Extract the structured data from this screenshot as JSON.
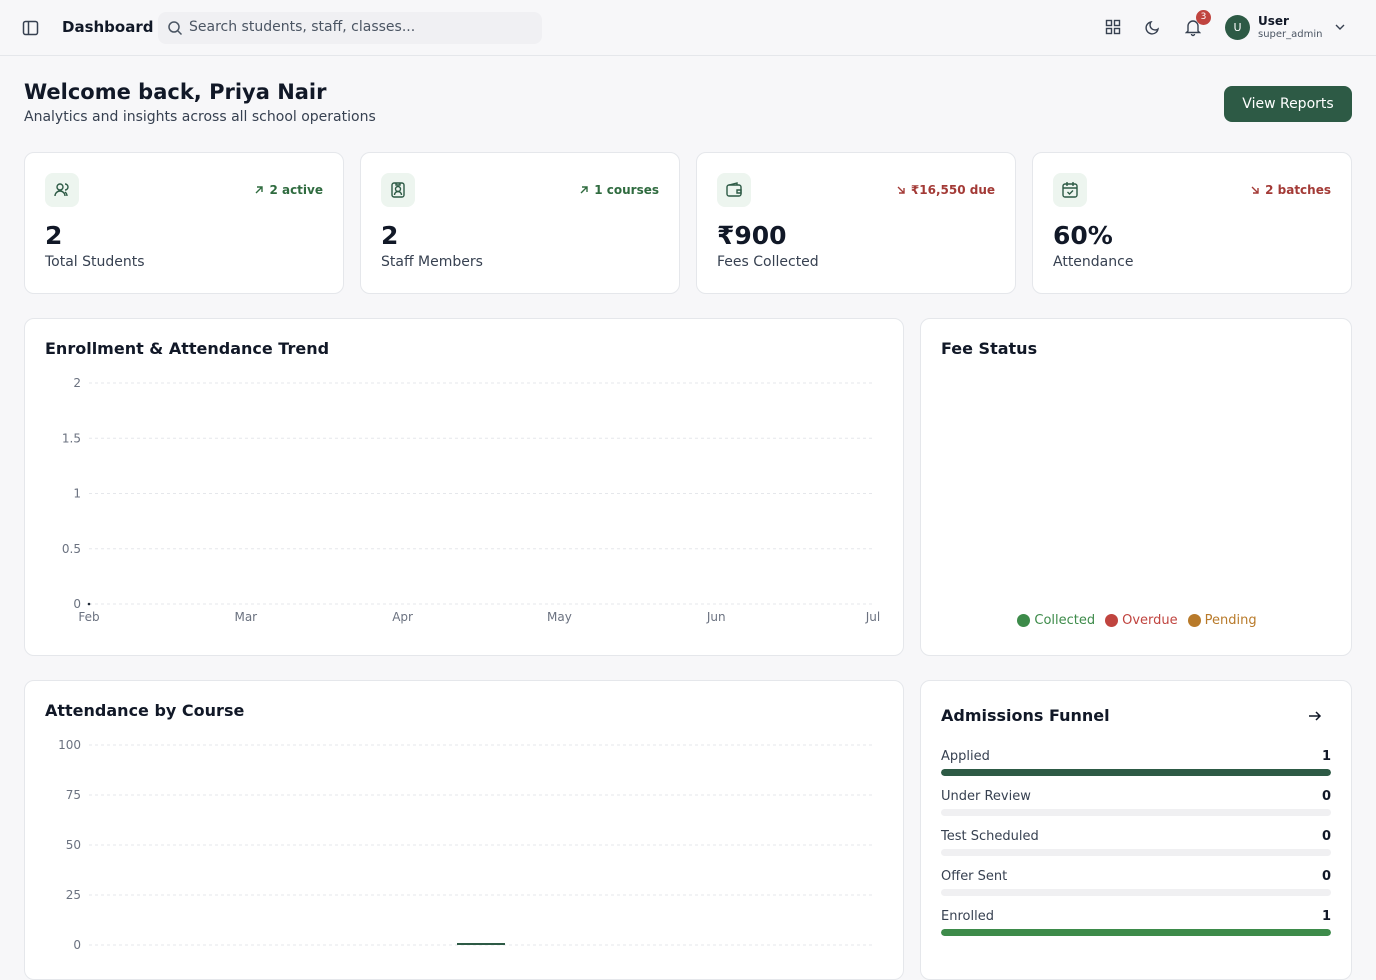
{
  "header": {
    "title": "Dashboard",
    "search_placeholder": "Search students, staff, classes...",
    "notification_count": "3",
    "user": {
      "avatar": "U",
      "name": "User",
      "role": "super_admin"
    }
  },
  "welcome": {
    "title": "Welcome back, Priya Nair",
    "subtitle": "Analytics and insights across all school operations",
    "button": "View Reports"
  },
  "stats": [
    {
      "value": "2",
      "label": "Total Students",
      "trend": "2 active",
      "direction": "up"
    },
    {
      "value": "2",
      "label": "Staff Members",
      "trend": "1 courses",
      "direction": "up"
    },
    {
      "value": "₹900",
      "label": "Fees Collected",
      "trend": "₹16,550 due",
      "direction": "down"
    },
    {
      "value": "60%",
      "label": "Attendance",
      "trend": "2 batches",
      "direction": "down"
    }
  ],
  "trend_chart": {
    "type": "line",
    "title": "Enrollment & Attendance Trend",
    "x": [
      "Feb",
      "Mar",
      "Apr",
      "May",
      "Jun",
      "Jul"
    ],
    "series": [
      {
        "color": "#1f2937",
        "values": [
          0,
          null,
          null,
          null,
          null,
          null
        ]
      }
    ],
    "ylim": [
      0,
      2
    ],
    "yticks": [
      0,
      0.5,
      1,
      1.5,
      2
    ],
    "grid": true
  },
  "fee_status": {
    "type": "pie",
    "title": "Fee Status",
    "legend": [
      {
        "name": "Collected",
        "color": "#3d8b4a"
      },
      {
        "name": "Overdue",
        "color": "#c0443f"
      },
      {
        "name": "Pending",
        "color": "#b87a2a"
      }
    ]
  },
  "attendance_chart": {
    "type": "bar",
    "title": "Attendance by Course",
    "categories": [
      null
    ],
    "values": [
      1
    ],
    "color": "#2d5a45",
    "ylim": [
      0,
      100
    ],
    "yticks": [
      0,
      25,
      50,
      75,
      100
    ],
    "grid": true
  },
  "funnel": {
    "title": "Admissions Funnel",
    "stages": [
      {
        "label": "Applied",
        "value": 1
      },
      {
        "label": "Under Review",
        "value": 0
      },
      {
        "label": "Test Scheduled",
        "value": 0
      },
      {
        "label": "Offer Sent",
        "value": 0
      },
      {
        "label": "Enrolled",
        "value": 1
      }
    ],
    "colors": [
      "#2d5a45",
      "#2d5a45",
      "#2d5a45",
      "#2d5a45",
      "#3d8b4a"
    ]
  }
}
